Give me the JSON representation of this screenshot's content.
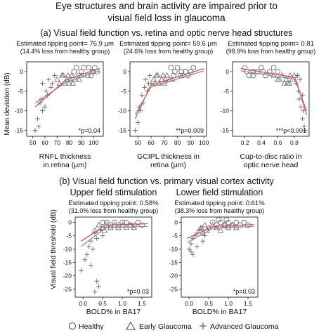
{
  "figure": {
    "title_lines": [
      "Eye structures and brain activity are impaired prior to",
      "visual field loss in glaucoma"
    ],
    "section_a": "(a) Visual field function vs. retina and optic nerve head structures",
    "section_b": "(b) Visual field function vs. primary visual cortex activity",
    "ylabel_a": "Mean deviation (dB)",
    "ylabel_b": "Visual field threshold (dB)",
    "legend": [
      {
        "label": "Healthy",
        "marker": "circle"
      },
      {
        "label": "Early Glaucoma",
        "marker": "triangle"
      },
      {
        "label": "Advanced Glaucoma",
        "marker": "plus"
      }
    ],
    "colors": {
      "fit_line": "#d9534f",
      "fit_line_gray": "#8a8a8a",
      "marker": "#666666",
      "frame": "#222222"
    }
  },
  "chart_data": [
    {
      "type": "scatter",
      "tip_line1": "Estimated tipping point= 76.9 μm",
      "tip_line2": "(14.4% loss from healthy group)",
      "xlabel_lines": [
        "RNFL thickness",
        "in retina (μm)"
      ],
      "p_text": "*p=0.04",
      "xlim": [
        45,
        108
      ],
      "ylim": [
        -16.5,
        2.5
      ],
      "xticks": [
        50,
        60,
        70,
        80,
        90,
        100
      ],
      "yticks": [
        0,
        -5,
        -10,
        -15
      ],
      "fit_red": [
        [
          52,
          -9
        ],
        [
          76.9,
          -2.2
        ],
        [
          105,
          0.8
        ]
      ],
      "fit_gray": [
        [
          52,
          -8
        ],
        [
          76.9,
          -2.8
        ],
        [
          105,
          0.2
        ]
      ],
      "healthy": [
        [
          86,
          1
        ],
        [
          90,
          0
        ],
        [
          95,
          -1
        ],
        [
          100,
          0
        ],
        [
          92,
          1
        ],
        [
          98,
          -1
        ],
        [
          88,
          -1
        ],
        [
          103,
          0
        ],
        [
          96,
          1
        ],
        [
          84,
          0
        ],
        [
          101,
          1
        ],
        [
          99,
          0
        ]
      ],
      "early": [
        [
          70,
          -2
        ],
        [
          75,
          -1
        ],
        [
          78,
          -2
        ],
        [
          82,
          -1
        ],
        [
          80,
          -3
        ],
        [
          72,
          -3
        ],
        [
          85,
          -2
        ],
        [
          76,
          -3
        ],
        [
          79,
          -1
        ],
        [
          88,
          -2
        ],
        [
          83,
          -3
        ],
        [
          74,
          -1
        ],
        [
          90,
          -1
        ],
        [
          81,
          -2
        ]
      ],
      "advanced": [
        [
          52,
          -15
        ],
        [
          55,
          -14
        ],
        [
          54,
          -12
        ],
        [
          58,
          -10
        ],
        [
          60,
          -9
        ],
        [
          57,
          -7
        ],
        [
          61,
          -5
        ],
        [
          62,
          -6
        ],
        [
          65,
          -4
        ],
        [
          58,
          -3
        ],
        [
          63,
          -2
        ],
        [
          66,
          -3
        ],
        [
          68,
          -1
        ],
        [
          56,
          -8
        ]
      ]
    },
    {
      "type": "scatter",
      "tip_line1": "Estimated tipping point= 59.6 μm",
      "tip_line2": "(24.6% loss from healthy group)",
      "xlabel_lines": [
        "GCIPL thickness in",
        "retina (μm)"
      ],
      "p_text": "**p=0.009",
      "xlim": [
        44,
        102
      ],
      "ylim": [
        -16.5,
        2.5
      ],
      "xticks": [
        50,
        60,
        70,
        80,
        90,
        100
      ],
      "yticks": [
        0,
        -5,
        -10,
        -15
      ],
      "fit_red": [
        [
          48,
          -12
        ],
        [
          59.6,
          -3.5
        ],
        [
          100,
          0.8
        ]
      ],
      "fit_gray": [
        [
          48,
          -11
        ],
        [
          59.6,
          -4
        ],
        [
          100,
          0.2
        ]
      ],
      "healthy": [
        [
          75,
          1
        ],
        [
          78,
          0
        ],
        [
          82,
          -1
        ],
        [
          86,
          0
        ],
        [
          80,
          1
        ],
        [
          84,
          -1
        ],
        [
          90,
          0
        ],
        [
          77,
          -1
        ],
        [
          92,
          1
        ],
        [
          88,
          -1
        ],
        [
          83,
          0
        ]
      ],
      "early": [
        [
          62,
          -2
        ],
        [
          65,
          -1
        ],
        [
          68,
          -2
        ],
        [
          70,
          -3
        ],
        [
          72,
          -1
        ],
        [
          66,
          -3
        ],
        [
          74,
          -2
        ],
        [
          63,
          -3
        ],
        [
          76,
          -2
        ],
        [
          69,
          -1
        ],
        [
          71,
          -2
        ],
        [
          64,
          -1
        ]
      ],
      "advanced": [
        [
          48,
          -15
        ],
        [
          50,
          -13
        ],
        [
          52,
          -10
        ],
        [
          54,
          -8
        ],
        [
          53,
          -6
        ],
        [
          55,
          -4
        ],
        [
          57,
          -5
        ],
        [
          58,
          -3
        ],
        [
          56,
          -2
        ],
        [
          59,
          -1
        ],
        [
          51,
          -9
        ],
        [
          60,
          -3
        ]
      ]
    },
    {
      "type": "scatter",
      "tip_line1": "Estimated tipping point= 0.81",
      "tip_line2": "(98.9% loss from healthy group)",
      "xlabel_lines": [
        "Cup-to-disc ratio in",
        "optic nerve head"
      ],
      "p_text": "***p<0.001",
      "xlim": [
        0.05,
        0.98
      ],
      "ylim": [
        -16.5,
        2.5
      ],
      "xticks": [
        0.2,
        0.4,
        0.6,
        0.8
      ],
      "yticks": [
        0,
        -5,
        -10,
        -15
      ],
      "fit_red": [
        [
          0.15,
          0.8
        ],
        [
          0.81,
          -1.5
        ],
        [
          0.95,
          -11
        ]
      ],
      "fit_gray": [
        [
          0.15,
          0.2
        ],
        [
          0.81,
          -2
        ],
        [
          0.95,
          -10
        ]
      ],
      "healthy": [
        [
          0.2,
          1
        ],
        [
          0.3,
          0
        ],
        [
          0.25,
          -1
        ],
        [
          0.4,
          1
        ],
        [
          0.35,
          0
        ],
        [
          0.45,
          -1
        ],
        [
          0.5,
          0
        ],
        [
          0.55,
          1
        ],
        [
          0.3,
          -1
        ],
        [
          0.6,
          0
        ],
        [
          0.42,
          0
        ],
        [
          0.22,
          0
        ]
      ],
      "early": [
        [
          0.55,
          -1
        ],
        [
          0.6,
          -2
        ],
        [
          0.65,
          -1
        ],
        [
          0.7,
          -2
        ],
        [
          0.72,
          -3
        ],
        [
          0.75,
          -1
        ],
        [
          0.78,
          -2
        ],
        [
          0.68,
          -3
        ],
        [
          0.8,
          -1
        ],
        [
          0.62,
          -2
        ],
        [
          0.74,
          -3
        ]
      ],
      "advanced": [
        [
          0.82,
          -3
        ],
        [
          0.85,
          -5
        ],
        [
          0.86,
          -7
        ],
        [
          0.88,
          -9
        ],
        [
          0.9,
          -12
        ],
        [
          0.92,
          -14
        ],
        [
          0.93,
          -15
        ],
        [
          0.87,
          -2
        ],
        [
          0.9,
          -6
        ],
        [
          0.84,
          -1
        ],
        [
          0.91,
          -10
        ]
      ]
    },
    {
      "type": "scatter",
      "title": "Upper field stimulation",
      "tip_line1": "Estimated tipping point: 0.58%",
      "tip_line2": "(31.0% loss from healthy group)",
      "xlabel_lines": [
        "BOLD% in BA17"
      ],
      "p_text": "*p=0.03",
      "xlim": [
        -0.2,
        1.75
      ],
      "ylim": [
        -28,
        2
      ],
      "xticks": [
        0.0,
        0.5,
        1.0,
        1.5
      ],
      "yticks": [
        0,
        -5,
        -10,
        -15,
        -20,
        -25
      ],
      "xtick_labels": [
        "0.0",
        "0.5",
        "1.0",
        "1.5"
      ],
      "fit_red": [
        [
          -0.05,
          -7
        ],
        [
          0.58,
          -1
        ],
        [
          1.65,
          -0.5
        ]
      ],
      "fit_gray": [
        [
          -0.05,
          -9
        ],
        [
          0.58,
          -2
        ],
        [
          1.65,
          -1.5
        ]
      ],
      "healthy": [
        [
          0.6,
          0
        ],
        [
          0.7,
          -1
        ],
        [
          0.8,
          0
        ],
        [
          0.9,
          -1
        ],
        [
          1.0,
          0
        ],
        [
          1.2,
          -1
        ],
        [
          1.4,
          0
        ],
        [
          1.5,
          -1
        ],
        [
          0.5,
          0
        ],
        [
          1.1,
          0
        ],
        [
          1.3,
          -1
        ]
      ],
      "early": [
        [
          0.4,
          -1
        ],
        [
          0.5,
          -2
        ],
        [
          0.6,
          -1
        ],
        [
          0.7,
          -2
        ],
        [
          0.8,
          -1
        ],
        [
          0.9,
          -2
        ],
        [
          1.0,
          -1
        ],
        [
          1.1,
          -2
        ],
        [
          0.3,
          -3
        ],
        [
          1.2,
          -1
        ],
        [
          1.3,
          -2
        ],
        [
          0.55,
          -3
        ]
      ],
      "advanced": [
        [
          -0.05,
          -18
        ],
        [
          0.05,
          -14
        ],
        [
          0.1,
          -12
        ],
        [
          0.15,
          -9
        ],
        [
          0.2,
          -7
        ],
        [
          0.25,
          -10
        ],
        [
          0.3,
          -4
        ],
        [
          0.35,
          -6
        ],
        [
          0.3,
          -26
        ],
        [
          0.4,
          -24
        ],
        [
          0.35,
          -22
        ],
        [
          0.45,
          -3
        ],
        [
          0.2,
          -16
        ],
        [
          0.5,
          -5
        ]
      ]
    },
    {
      "type": "scatter",
      "title": "Lower field stimulation",
      "tip_line1": "Estimated tipping point: 0.61%",
      "tip_line2": "(38.3% loss from healthy group)",
      "xlabel_lines": [
        "BOLD% in BA17"
      ],
      "p_text": "*p=0.03",
      "xlim": [
        -0.2,
        1.75
      ],
      "ylim": [
        -28,
        2
      ],
      "xticks": [
        0.0,
        0.5,
        1.0,
        1.5
      ],
      "yticks": [
        0,
        -5,
        -10,
        -15,
        -20,
        -25
      ],
      "xtick_labels": [
        "0.0",
        "0.5",
        "1.0",
        "1.5"
      ],
      "fit_red": [
        [
          -0.05,
          -6
        ],
        [
          0.61,
          -1.5
        ],
        [
          1.65,
          -0.8
        ]
      ],
      "fit_gray": [
        [
          -0.05,
          -7.5
        ],
        [
          0.61,
          -2.2
        ],
        [
          1.65,
          -1.5
        ]
      ],
      "healthy": [
        [
          0.6,
          0
        ],
        [
          0.7,
          -1
        ],
        [
          0.8,
          0
        ],
        [
          0.9,
          -1
        ],
        [
          1.0,
          0
        ],
        [
          1.1,
          -1
        ],
        [
          1.2,
          0
        ],
        [
          1.3,
          -1
        ],
        [
          1.4,
          0
        ],
        [
          1.5,
          -1
        ],
        [
          0.75,
          1
        ],
        [
          0.95,
          1
        ]
      ],
      "early": [
        [
          0.3,
          -2
        ],
        [
          0.4,
          -1
        ],
        [
          0.5,
          -2
        ],
        [
          0.6,
          -1
        ],
        [
          0.7,
          -2
        ],
        [
          0.8,
          -3
        ],
        [
          0.9,
          -1
        ],
        [
          1.0,
          -2
        ],
        [
          1.1,
          -1
        ],
        [
          0.35,
          -4
        ],
        [
          0.45,
          -3
        ],
        [
          1.2,
          -2
        ]
      ],
      "advanced": [
        [
          0.0,
          -10
        ],
        [
          0.05,
          -8
        ],
        [
          0.1,
          -6
        ],
        [
          0.15,
          -5
        ],
        [
          0.2,
          -4
        ],
        [
          0.25,
          -3
        ],
        [
          0.3,
          -2
        ],
        [
          0.1,
          -12
        ],
        [
          0.2,
          -9
        ],
        [
          0.35,
          -7
        ],
        [
          0.4,
          -5
        ],
        [
          0.05,
          -11
        ]
      ]
    }
  ]
}
